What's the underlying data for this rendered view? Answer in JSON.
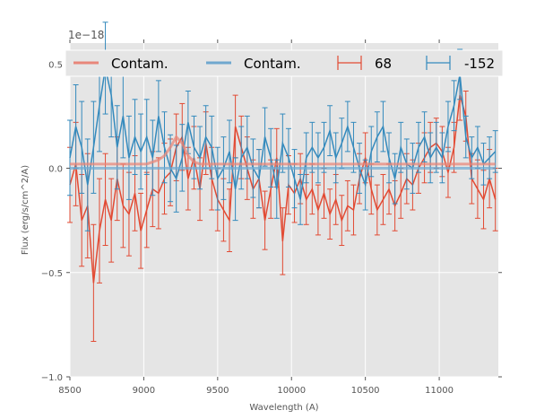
{
  "chart_data": {
    "type": "line",
    "title": "",
    "xlabel": "Wavelength (A)",
    "ylabel": "Flux (erg/s/cm^2/A)",
    "y_offset_label": "1e−18",
    "xlim": [
      8500,
      11400
    ],
    "ylim": [
      -1.0,
      0.6
    ],
    "x_ticks": [
      8500,
      9000,
      9500,
      10000,
      10500,
      11000
    ],
    "x_tick_labels": [
      "8500",
      "9000",
      "9500",
      "10000",
      "10500",
      "11000"
    ],
    "y_ticks": [
      -1.0,
      -0.5,
      0.0,
      0.5
    ],
    "y_tick_labels": [
      "−1.0",
      "−0.5",
      "0.0",
      "0.5"
    ],
    "grid": true,
    "legend": {
      "placement": "top",
      "entries": [
        {
          "label": "Contam.",
          "kind": "line",
          "color": "#e8877a"
        },
        {
          "label": "Contam.",
          "kind": "line",
          "color": "#6fa8cf"
        },
        {
          "label": "68",
          "kind": "errorbar",
          "color": "#e24a33"
        },
        {
          "label": "-152",
          "kind": "errorbar",
          "color": "#348abd"
        }
      ]
    },
    "x": [
      8500,
      8540,
      8580,
      8620,
      8660,
      8700,
      8740,
      8780,
      8820,
      8860,
      8900,
      8940,
      8980,
      9020,
      9060,
      9100,
      9140,
      9180,
      9220,
      9260,
      9300,
      9340,
      9380,
      9420,
      9460,
      9500,
      9540,
      9580,
      9620,
      9660,
      9700,
      9740,
      9780,
      9820,
      9860,
      9900,
      9940,
      9980,
      10020,
      10060,
      10100,
      10140,
      10180,
      10220,
      10260,
      10300,
      10340,
      10380,
      10420,
      10460,
      10500,
      10540,
      10580,
      10620,
      10660,
      10700,
      10740,
      10780,
      10820,
      10860,
      10900,
      10940,
      10980,
      11020,
      11060,
      11100,
      11140,
      11180,
      11220,
      11260,
      11300,
      11340,
      11380
    ],
    "series": [
      {
        "name": "68",
        "kind": "errorbar",
        "color": "#e24a33",
        "values": [
          -0.08,
          0.02,
          -0.25,
          -0.18,
          -0.55,
          -0.3,
          -0.15,
          -0.25,
          -0.05,
          -0.18,
          -0.22,
          -0.12,
          -0.3,
          -0.2,
          -0.1,
          -0.12,
          -0.05,
          -0.02,
          0.1,
          0.15,
          -0.05,
          0.05,
          -0.1,
          0.12,
          -0.05,
          -0.15,
          -0.2,
          -0.25,
          0.2,
          0.1,
          0.0,
          -0.1,
          -0.05,
          -0.25,
          -0.1,
          0.05,
          -0.35,
          -0.08,
          -0.12,
          -0.05,
          -0.15,
          -0.1,
          -0.2,
          -0.12,
          -0.22,
          -0.15,
          -0.25,
          -0.18,
          -0.2,
          -0.05,
          0.05,
          -0.1,
          -0.2,
          -0.15,
          -0.1,
          -0.18,
          -0.12,
          -0.05,
          -0.08,
          0.0,
          0.05,
          0.1,
          0.12,
          0.08,
          -0.02,
          0.1,
          0.35,
          0.25,
          -0.05,
          -0.1,
          -0.15,
          -0.05,
          -0.15
        ],
        "errors": [
          0.18,
          0.2,
          0.22,
          0.25,
          0.28,
          0.25,
          0.22,
          0.2,
          0.2,
          0.2,
          0.2,
          0.18,
          0.18,
          0.18,
          0.18,
          0.17,
          0.17,
          0.16,
          0.16,
          0.16,
          0.15,
          0.15,
          0.15,
          0.15,
          0.15,
          0.15,
          0.15,
          0.15,
          0.15,
          0.15,
          0.15,
          0.14,
          0.14,
          0.14,
          0.14,
          0.14,
          0.16,
          0.14,
          0.14,
          0.12,
          0.12,
          0.12,
          0.12,
          0.12,
          0.12,
          0.12,
          0.12,
          0.12,
          0.12,
          0.12,
          0.12,
          0.12,
          0.12,
          0.12,
          0.12,
          0.12,
          0.12,
          0.12,
          0.12,
          0.12,
          0.12,
          0.12,
          0.12,
          0.12,
          0.12,
          0.12,
          0.12,
          0.12,
          0.12,
          0.14,
          0.14,
          0.14,
          0.15
        ]
      },
      {
        "name": "-152",
        "kind": "errorbar",
        "color": "#348abd",
        "values": [
          0.05,
          0.2,
          0.1,
          -0.08,
          0.1,
          0.3,
          0.48,
          0.35,
          0.1,
          0.25,
          0.05,
          0.15,
          0.08,
          0.15,
          0.05,
          0.25,
          0.1,
          0.0,
          -0.05,
          0.05,
          0.22,
          0.1,
          0.05,
          0.15,
          0.1,
          -0.05,
          0.0,
          0.08,
          -0.1,
          0.05,
          0.1,
          0.0,
          -0.05,
          0.15,
          0.05,
          -0.1,
          0.12,
          0.05,
          -0.05,
          -0.15,
          0.05,
          0.1,
          0.05,
          0.1,
          0.18,
          0.05,
          0.12,
          0.2,
          0.1,
          0.0,
          -0.08,
          0.08,
          0.15,
          0.2,
          0.05,
          -0.05,
          0.1,
          0.02,
          0.0,
          0.1,
          0.15,
          0.05,
          0.1,
          0.05,
          0.2,
          0.3,
          0.45,
          0.15,
          0.05,
          0.1,
          0.02,
          0.05,
          0.08
        ],
        "errors": [
          0.18,
          0.2,
          0.22,
          0.22,
          0.22,
          0.22,
          0.22,
          0.2,
          0.2,
          0.2,
          0.2,
          0.18,
          0.18,
          0.18,
          0.18,
          0.17,
          0.17,
          0.16,
          0.16,
          0.16,
          0.15,
          0.15,
          0.15,
          0.15,
          0.15,
          0.15,
          0.15,
          0.15,
          0.15,
          0.15,
          0.15,
          0.14,
          0.14,
          0.14,
          0.14,
          0.14,
          0.14,
          0.14,
          0.14,
          0.12,
          0.12,
          0.12,
          0.12,
          0.12,
          0.12,
          0.12,
          0.12,
          0.12,
          0.12,
          0.12,
          0.12,
          0.12,
          0.12,
          0.12,
          0.12,
          0.12,
          0.12,
          0.12,
          0.12,
          0.12,
          0.12,
          0.12,
          0.12,
          0.12,
          0.12,
          0.12,
          0.12,
          0.1,
          0.1,
          0.1,
          0.1,
          0.1,
          0.1
        ]
      },
      {
        "name": "Contam.",
        "kind": "line",
        "color": "#e8877a",
        "values": [
          0.02,
          0.02,
          0.02,
          0.02,
          0.02,
          0.02,
          0.02,
          0.02,
          0.02,
          0.02,
          0.02,
          0.02,
          0.02,
          0.02,
          0.03,
          0.04,
          0.06,
          0.1,
          0.15,
          0.12,
          0.06,
          0.03,
          0.02,
          0.02,
          0.02,
          0.02,
          0.02,
          0.02,
          0.02,
          0.02,
          0.02,
          0.02,
          0.02,
          0.02,
          0.02,
          0.02,
          0.02,
          0.02,
          0.02,
          0.02,
          0.02,
          0.02,
          0.02,
          0.02,
          0.02,
          0.02,
          0.02,
          0.02,
          0.02,
          0.02,
          0.02,
          0.02,
          0.02,
          0.02,
          0.02,
          0.02,
          0.02,
          0.02,
          0.02,
          0.02,
          0.02,
          0.02,
          0.02,
          0.02,
          0.02,
          0.02,
          0.02,
          0.02,
          0.02,
          0.02,
          0.02,
          0.02,
          0.02
        ]
      },
      {
        "name": "Contam.",
        "kind": "line",
        "color": "#6fa8cf",
        "values": [
          0.0,
          0.0,
          0.0,
          0.0,
          0.0,
          0.0,
          0.0,
          0.0,
          0.0,
          0.0,
          0.0,
          0.0,
          0.0,
          0.0,
          0.0,
          0.0,
          0.0,
          0.0,
          0.0,
          0.0,
          0.0,
          0.0,
          0.0,
          0.0,
          0.0,
          0.0,
          0.0,
          0.0,
          0.0,
          0.0,
          0.0,
          0.0,
          0.0,
          0.0,
          0.0,
          0.0,
          0.0,
          0.0,
          0.0,
          0.0,
          0.0,
          0.0,
          0.0,
          0.0,
          0.0,
          0.0,
          0.0,
          0.0,
          0.0,
          0.0,
          0.0,
          0.0,
          0.0,
          0.0,
          0.0,
          0.0,
          0.0,
          0.0,
          0.0,
          0.0,
          0.0,
          0.0,
          0.0,
          0.0,
          0.0,
          0.0,
          0.0,
          0.0,
          0.0,
          0.0,
          0.0,
          0.0,
          0.0
        ]
      }
    ]
  }
}
